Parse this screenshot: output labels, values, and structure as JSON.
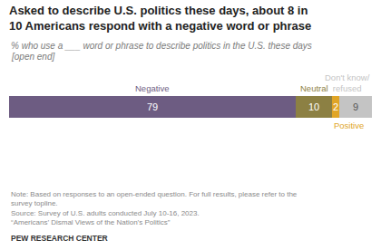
{
  "chart_data": {
    "type": "bar",
    "orientation": "horizontal",
    "stacked": true,
    "data_labels": true,
    "tick_labels": false,
    "grid": false,
    "title": [
      "Asked to describe U.S. politics these days, about 8 in",
      "10 Americans respond with a negative word or phrase"
    ],
    "subtitle": [
      "% who use a ___ word or phrase to describe politics in the U.S. these days",
      "[open end]"
    ],
    "categories": [
      null
    ],
    "xlim": [
      0,
      100
    ],
    "series": [
      {
        "name": "Negative",
        "color": "#6d5c82",
        "values": [
          79
        ]
      },
      {
        "name": "Neutral",
        "color": "#8c8043",
        "values": [
          10
        ]
      },
      {
        "name": "Positive",
        "color": "#e0a526",
        "values": [
          2
        ]
      },
      {
        "name": "Don't know/refused",
        "color": "#c4c4c4",
        "values": [
          9
        ]
      }
    ],
    "footnotes": [
      "Note: Based on responses to an open-ended question. For full results, please refer to the",
      "survey topline.",
      "Source: Survey of U.S. adults conducted July 10-16, 2023.",
      "“Americans’ Dismal Views of the Nation’s Politics”"
    ],
    "brand": "PEW RESEARCH CENTER"
  }
}
